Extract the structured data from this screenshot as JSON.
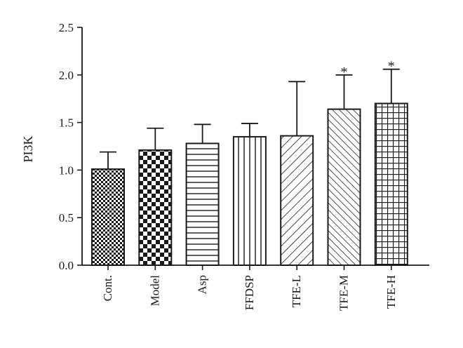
{
  "chart_data": {
    "type": "bar",
    "ylabel": "PI3K",
    "ylim": [
      0,
      2.5
    ],
    "yticks": [
      "0.0",
      "0.5",
      "1.0",
      "1.5",
      "2.0",
      "2.5"
    ],
    "grid": false,
    "legend": "none",
    "categories": [
      "Cont.",
      "Model",
      "Asp",
      "FFDSP",
      "TFE-L",
      "TFE-M",
      "TFE-H"
    ],
    "values": [
      1.01,
      1.21,
      1.28,
      1.35,
      1.36,
      1.64,
      1.7
    ],
    "errors": [
      0.18,
      0.23,
      0.2,
      0.14,
      0.57,
      0.36,
      0.36
    ],
    "significance": [
      "",
      "",
      "",
      "",
      "",
      "*",
      "*"
    ],
    "patterns": [
      "fine-checker",
      "checker",
      "horizontal",
      "vertical",
      "diagonal",
      "diagonal-dense",
      "grid"
    ],
    "colors": {
      "ink": "#1a1a1a",
      "background": "#ffffff"
    }
  }
}
